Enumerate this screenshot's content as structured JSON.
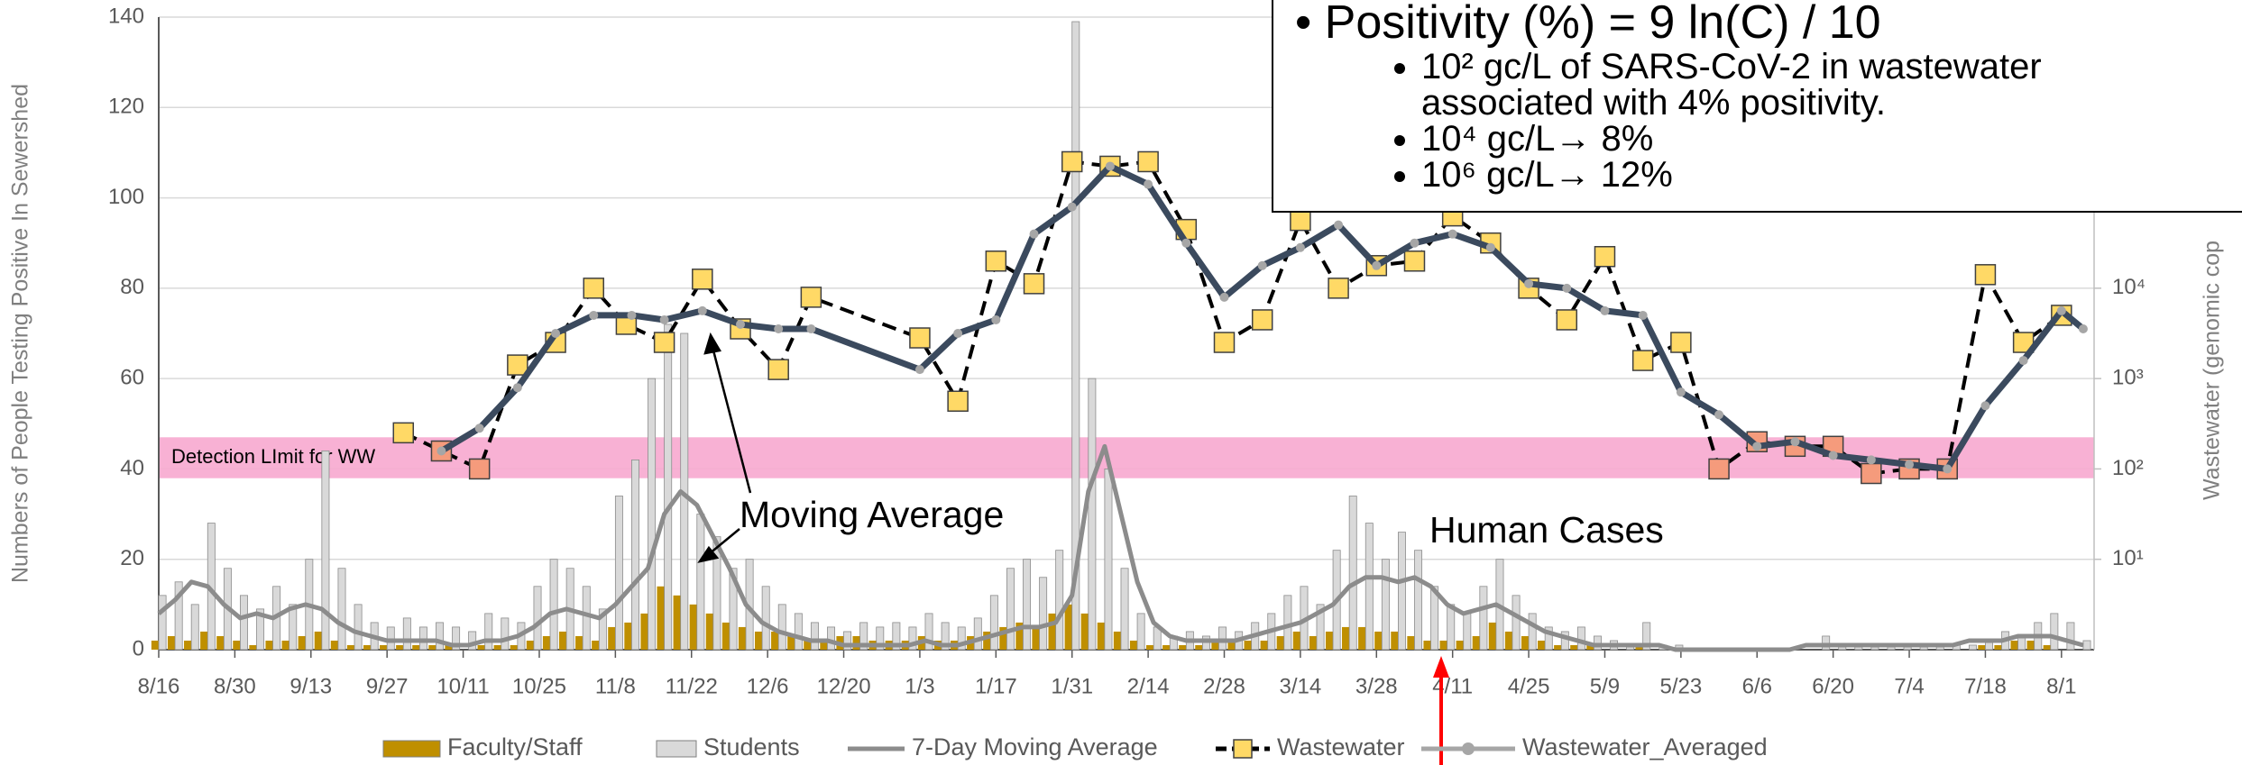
{
  "chart_data": {
    "type": "combo",
    "ylabel": "Numbers of People Testing Positive In Sewershed",
    "y2label": "Wastewater (genomic cop",
    "xlim": [
      0,
      356
    ],
    "xticks": [
      {
        "value": 0,
        "label": "8/16"
      },
      {
        "value": 14,
        "label": "8/30"
      },
      {
        "value": 28,
        "label": "9/13"
      },
      {
        "value": 42,
        "label": "9/27"
      },
      {
        "value": 56,
        "label": "10/11"
      },
      {
        "value": 70,
        "label": "10/25"
      },
      {
        "value": 84,
        "label": "11/8"
      },
      {
        "value": 98,
        "label": "11/22"
      },
      {
        "value": 112,
        "label": "12/6"
      },
      {
        "value": 126,
        "label": "12/20"
      },
      {
        "value": 140,
        "label": "1/3"
      },
      {
        "value": 154,
        "label": "1/17"
      },
      {
        "value": 168,
        "label": "1/31"
      },
      {
        "value": 182,
        "label": "2/14"
      },
      {
        "value": 196,
        "label": "2/28"
      },
      {
        "value": 210,
        "label": "3/14"
      },
      {
        "value": 224,
        "label": "3/28"
      },
      {
        "value": 238,
        "label": "4/11"
      },
      {
        "value": 252,
        "label": "4/25"
      },
      {
        "value": 266,
        "label": "5/9"
      },
      {
        "value": 280,
        "label": "5/23"
      },
      {
        "value": 294,
        "label": "6/6"
      },
      {
        "value": 308,
        "label": "6/20"
      },
      {
        "value": 322,
        "label": "7/4"
      },
      {
        "value": 336,
        "label": "7/18"
      },
      {
        "value": 350,
        "label": "8/1"
      }
    ],
    "ylim": [
      0,
      140
    ],
    "yticks": [
      0,
      20,
      40,
      60,
      80,
      100,
      120,
      140
    ],
    "y2lim": [
      1,
      10000000
    ],
    "y2log": true,
    "y2ticks": [
      {
        "value": 10,
        "label": "10¹"
      },
      {
        "value": 100,
        "label": "10²"
      },
      {
        "value": 1000,
        "label": "10³"
      },
      {
        "value": 10000,
        "label": "10⁴"
      }
    ],
    "grid": true,
    "detection_limit": {
      "label": "Detection LImit for WW",
      "range": [
        79,
        224
      ],
      "color": "#f7a8cf"
    },
    "annotations": [
      {
        "text": "Moving Average"
      },
      {
        "text": "Human Cases"
      }
    ],
    "textbox": {
      "title": "Positivity (%) = 9 ln(C) / 10",
      "bullets": [
        "10² gc/L of SARS-CoV-2 in wastewater associated with 4% positivity.",
        "10⁴ gc/L→ 8%",
        "10⁶ gc/L→ 12%"
      ]
    },
    "x": [
      0,
      3,
      6,
      9,
      12,
      15,
      18,
      21,
      24,
      27,
      30,
      33,
      36,
      39,
      42,
      45,
      48,
      51,
      54,
      57,
      60,
      63,
      66,
      69,
      72,
      75,
      78,
      81,
      84,
      87,
      90,
      93,
      96,
      99,
      102,
      105,
      108,
      111,
      114,
      117,
      120,
      123,
      126,
      129,
      132,
      135,
      138,
      141,
      144,
      147,
      150,
      153,
      156,
      159,
      162,
      165,
      168,
      171,
      174,
      177,
      180,
      183,
      186,
      189,
      192,
      195,
      198,
      201,
      204,
      207,
      210,
      213,
      216,
      219,
      222,
      225,
      228,
      231,
      234,
      237,
      240,
      243,
      246,
      249,
      252,
      255,
      258,
      261,
      264,
      267,
      270,
      273,
      276,
      279,
      282,
      285,
      288,
      291,
      294,
      297,
      300,
      303,
      306,
      309,
      312,
      315,
      318,
      321,
      324,
      327,
      330,
      333,
      336,
      339,
      342,
      345,
      348,
      351,
      354
    ],
    "series": [
      {
        "name": "Faculty/Staff",
        "type": "bar",
        "color": "#bf8f00",
        "values": [
          2,
          3,
          2,
          4,
          3,
          2,
          1,
          2,
          2,
          3,
          4,
          2,
          1,
          1,
          1,
          1,
          1,
          1,
          1,
          0,
          1,
          1,
          1,
          2,
          3,
          4,
          3,
          2,
          5,
          6,
          8,
          14,
          12,
          10,
          8,
          6,
          5,
          4,
          4,
          3,
          2,
          2,
          3,
          3,
          2,
          2,
          2,
          3,
          2,
          2,
          3,
          4,
          5,
          6,
          5,
          8,
          10,
          8,
          6,
          4,
          2,
          1,
          1,
          1,
          1,
          2,
          2,
          2,
          2,
          3,
          4,
          3,
          4,
          5,
          5,
          4,
          4,
          3,
          2,
          2,
          2,
          3,
          6,
          4,
          3,
          2,
          1,
          1,
          1,
          0,
          0,
          1,
          0,
          0,
          0,
          0,
          0,
          0,
          0,
          0,
          0,
          0,
          0,
          0,
          0,
          0,
          0,
          0,
          0,
          0,
          0,
          0,
          1,
          1,
          2,
          2,
          1,
          0,
          0
        ]
      },
      {
        "name": "Students",
        "type": "bar",
        "color": "#d9d9d9",
        "values": [
          12,
          15,
          10,
          28,
          18,
          12,
          9,
          14,
          10,
          20,
          44,
          18,
          10,
          6,
          5,
          7,
          5,
          6,
          5,
          4,
          8,
          7,
          6,
          14,
          20,
          18,
          14,
          9,
          34,
          42,
          60,
          72,
          70,
          30,
          25,
          18,
          20,
          14,
          10,
          8,
          6,
          5,
          4,
          6,
          5,
          6,
          5,
          8,
          6,
          5,
          7,
          12,
          18,
          20,
          16,
          22,
          139,
          60,
          40,
          18,
          8,
          5,
          3,
          4,
          3,
          5,
          4,
          6,
          8,
          12,
          14,
          10,
          22,
          34,
          28,
          20,
          26,
          22,
          14,
          10,
          8,
          14,
          20,
          12,
          8,
          5,
          4,
          5,
          3,
          2,
          1,
          6,
          1,
          1,
          0,
          0,
          0,
          0,
          0,
          0,
          0,
          0,
          3,
          1,
          1,
          1,
          1,
          1,
          1,
          1,
          1,
          1,
          2,
          4,
          3,
          6,
          8,
          6,
          2
        ]
      },
      {
        "name": "7-Day Moving Average",
        "type": "line",
        "color": "#8c8c8c",
        "values": [
          8,
          11,
          15,
          14,
          10,
          7,
          8,
          7,
          9,
          10,
          9,
          6,
          4,
          3,
          2,
          2,
          2,
          2,
          1,
          1,
          2,
          2,
          3,
          5,
          8,
          9,
          8,
          7,
          10,
          14,
          18,
          30,
          35,
          32,
          25,
          18,
          10,
          6,
          4,
          3,
          2,
          2,
          1,
          1,
          1,
          1,
          1,
          2,
          1,
          1,
          2,
          3,
          4,
          5,
          5,
          6,
          12,
          35,
          45,
          30,
          15,
          6,
          3,
          2,
          2,
          2,
          2,
          3,
          4,
          5,
          6,
          8,
          10,
          14,
          16,
          16,
          15,
          16,
          14,
          10,
          8,
          9,
          10,
          8,
          6,
          4,
          3,
          2,
          1,
          1,
          1,
          1,
          1,
          0,
          0,
          0,
          0,
          0,
          0,
          0,
          0,
          1,
          1,
          1,
          1,
          1,
          1,
          1,
          1,
          1,
          1,
          2,
          2,
          2,
          3,
          3,
          3,
          2,
          1
        ]
      },
      {
        "name": "Wastewater",
        "type": "line",
        "axis": "y2",
        "color": "#000000",
        "dashed": true,
        "marker": "square",
        "marker_color": "#ffd966",
        "below_limit_color": "#f59b7c",
        "x": [
          45,
          52,
          59,
          66,
          73,
          80,
          86,
          93,
          100,
          107,
          114,
          120,
          140,
          147,
          154,
          161,
          168,
          175,
          182,
          189,
          196,
          203,
          210,
          217,
          224,
          231,
          238,
          245,
          252,
          259,
          266,
          273,
          280,
          287,
          294,
          301,
          308,
          315,
          322,
          329,
          336,
          343,
          350
        ],
        "values": [
          251,
          158,
          100,
          1413,
          2512,
          10000,
          3981,
          2512,
          12589,
          3548,
          1259,
          7943,
          2818,
          562,
          19953,
          11220,
          251189,
          223872,
          251189,
          44668,
          2512,
          4467,
          56234,
          10000,
          17783,
          19953,
          63096,
          31623,
          10000,
          4467,
          22387,
          1585,
          2512,
          100,
          200,
          178,
          178,
          89,
          100,
          100,
          14125,
          2512,
          5012
        ]
      },
      {
        "name": "Wastewater_Averaged",
        "type": "line",
        "axis": "y2",
        "color": "#3b4a5e",
        "marker": "circle",
        "marker_color": "#a6a6a6",
        "x": [
          52,
          59,
          66,
          73,
          80,
          87,
          93,
          100,
          107,
          114,
          120,
          140,
          147,
          154,
          161,
          168,
          175,
          182,
          189,
          196,
          203,
          210,
          217,
          224,
          231,
          238,
          245,
          252,
          259,
          266,
          273,
          280,
          287,
          294,
          301,
          308,
          315,
          322,
          329,
          336,
          343,
          350,
          354
        ],
        "values": [
          158,
          282,
          794,
          3162,
          5012,
          5012,
          4467,
          5623,
          3981,
          3548,
          3548,
          1259,
          3162,
          4467,
          39811,
          79433,
          223872,
          141254,
          31623,
          7943,
          17783,
          28184,
          50119,
          17783,
          31623,
          39811,
          28184,
          11220,
          10000,
          5623,
          5012,
          708,
          398,
          178,
          200,
          141,
          126,
          112,
          100,
          501,
          1585,
          5623,
          3548
        ]
      }
    ]
  }
}
